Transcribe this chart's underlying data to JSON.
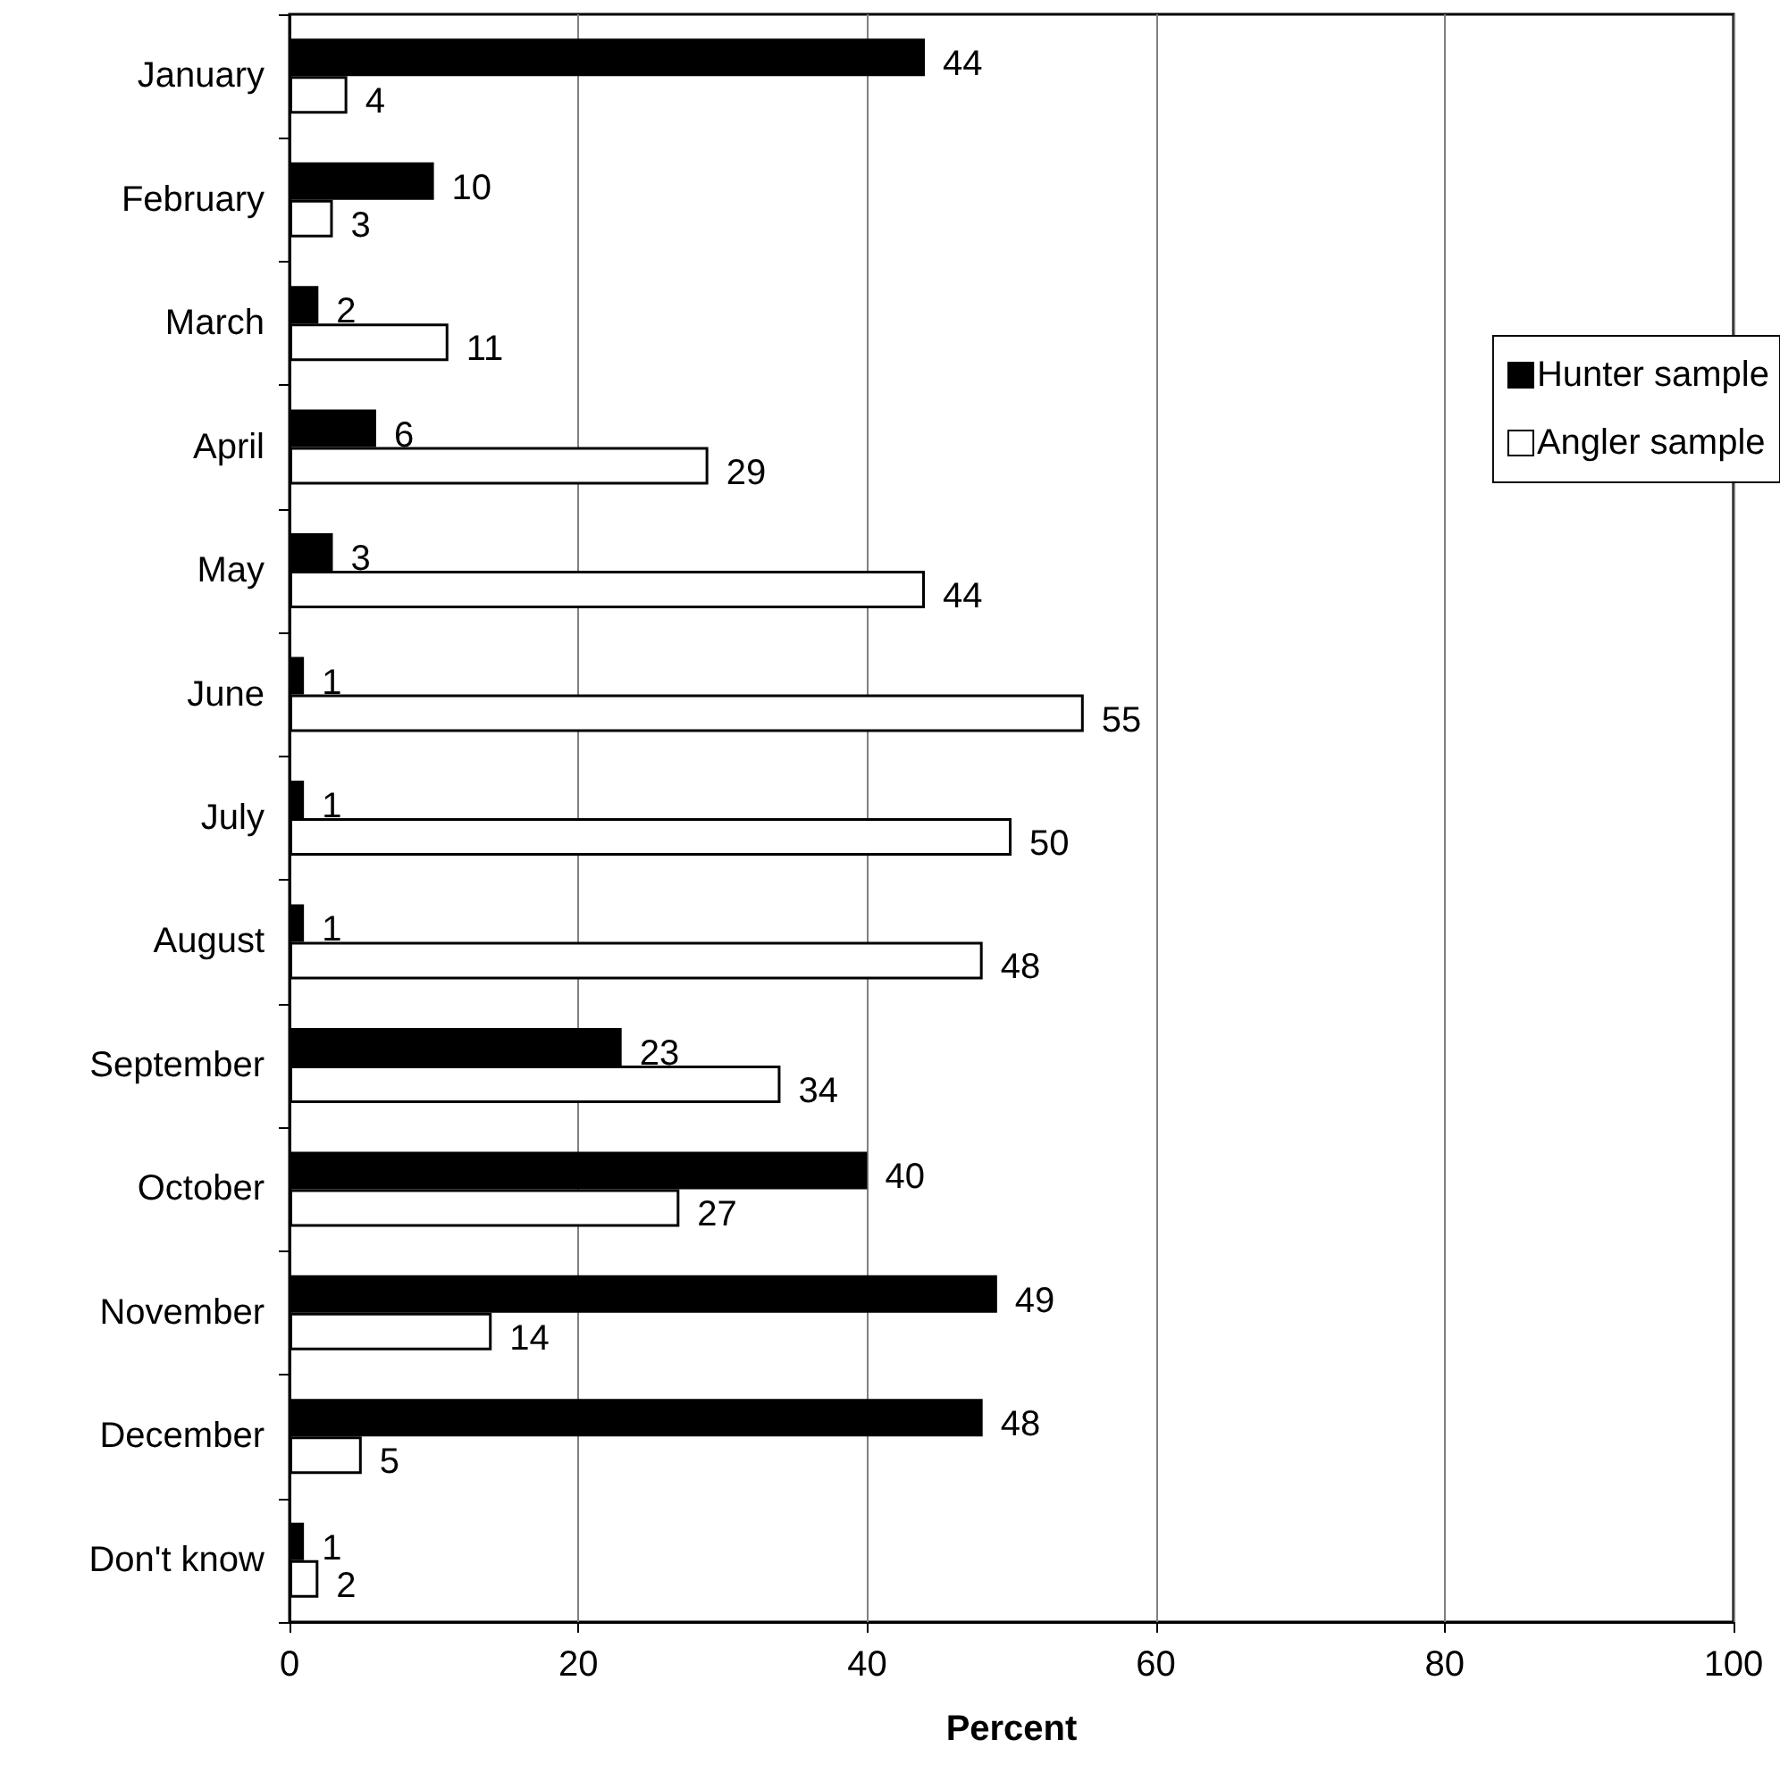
{
  "chart_data": {
    "type": "bar",
    "orientation": "horizontal",
    "xlabel": "Percent",
    "categories": [
      "January",
      "February",
      "March",
      "April",
      "May",
      "June",
      "July",
      "August",
      "September",
      "October",
      "November",
      "December",
      "Don't know"
    ],
    "series": [
      {
        "name": "Hunter sample",
        "color": "#000000",
        "values": [
          44,
          10,
          2,
          6,
          3,
          1,
          1,
          1,
          23,
          40,
          49,
          48,
          1
        ]
      },
      {
        "name": "Angler sample",
        "color": "#ffffff",
        "values": [
          4,
          3,
          11,
          29,
          44,
          55,
          50,
          48,
          34,
          27,
          14,
          5,
          2
        ]
      }
    ],
    "xlim": [
      0,
      100
    ],
    "xticks": [
      0,
      20,
      40,
      60,
      80,
      100
    ],
    "grid": "x",
    "legend": "right",
    "data_labels": true
  }
}
